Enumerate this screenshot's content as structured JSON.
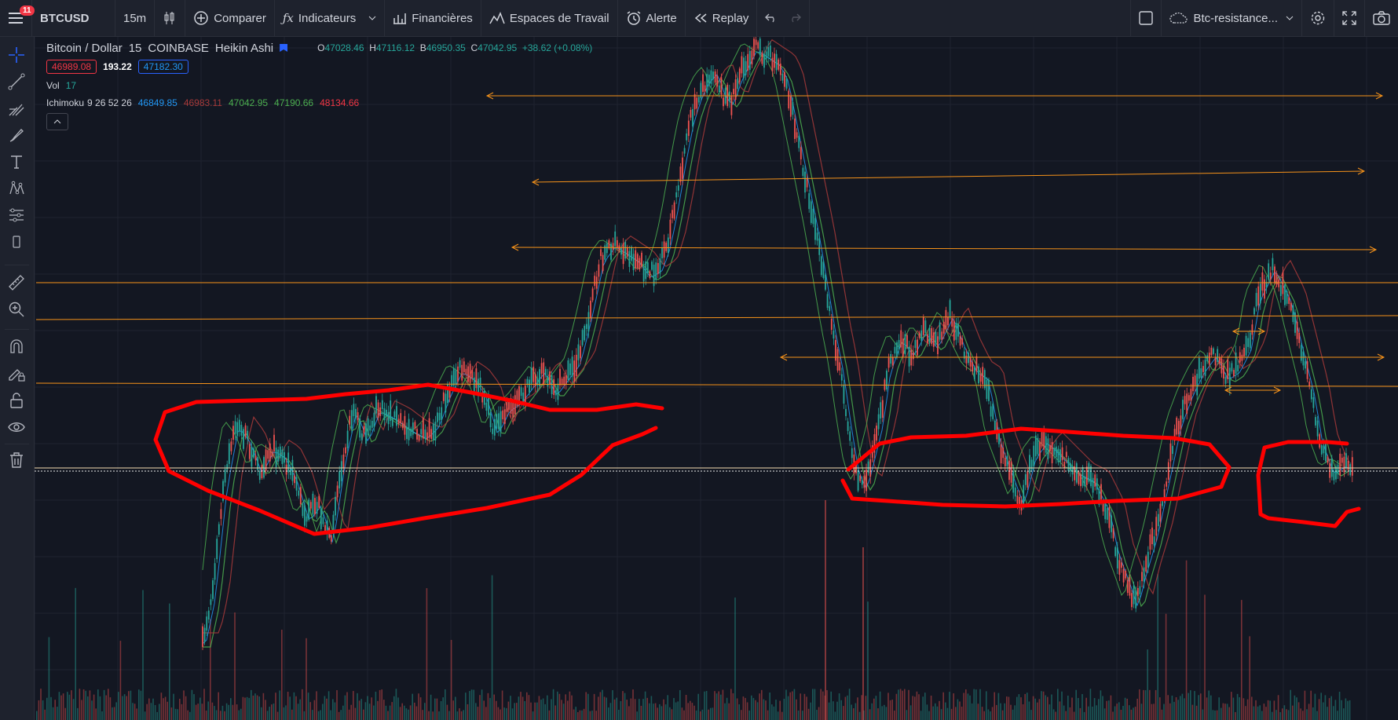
{
  "header": {
    "menu_badge": "11",
    "symbol": "BTCUSD",
    "interval": "15m",
    "compare_label": "Comparer",
    "indicators_label": "Indicateurs",
    "financials_label": "Financières",
    "workspaces_label": "Espaces de Travail",
    "alert_label": "Alerte",
    "replay_label": "Replay",
    "layout_name": "Btc-resistance..."
  },
  "legend": {
    "title": "Bitcoin / Dollar",
    "interval": "15",
    "exchange": "COINBASE",
    "chart_style": "Heikin Ashi",
    "ohlc": {
      "o": "47028.46",
      "h": "47116.12",
      "b": "46950.35",
      "c": "47042.95",
      "change": "+38.62 (+0.08%)"
    },
    "bid": "46989.08",
    "spread": "193.22",
    "ask": "47182.30",
    "volume_label": "Vol",
    "volume_value": "17",
    "ichimoku_label": "Ichimoku",
    "ichimoku_params": "9 26 52 26",
    "ichimoku_values": [
      "46849.85",
      "46983.11",
      "47042.95",
      "47190.66",
      "48134.66"
    ]
  },
  "colors": {
    "background": "#131722",
    "toolbar": "#1e222d",
    "bull": "#26a69a",
    "bear": "#ef5350",
    "level_line": "#f7931a",
    "annotation": "#ff0000",
    "ichimoku_blue": "#2196f3",
    "ichimoku_red": "#a73a3a",
    "ichimoku_green": "#4caf50",
    "ichimoku_red2": "#f23645"
  },
  "icons": [
    "menu-icon",
    "candles-icon",
    "plus-circle-icon",
    "fx-icon",
    "chevron-down-icon",
    "financials-icon",
    "workspaces-icon",
    "alarm-icon",
    "replay-icon",
    "undo-icon",
    "redo-icon",
    "fullscreen-icon",
    "cloud-icon",
    "settings-icon",
    "expand-icon",
    "camera-icon",
    "crosshair-icon",
    "trendline-icon",
    "pitchfork-icon",
    "brush-icon",
    "text-icon",
    "pattern-icon",
    "measure-icon",
    "ruler-icon",
    "zoom-icon",
    "magnet-icon",
    "lock-pencil-icon",
    "lock-icon",
    "eye-icon",
    "trash-icon"
  ]
}
